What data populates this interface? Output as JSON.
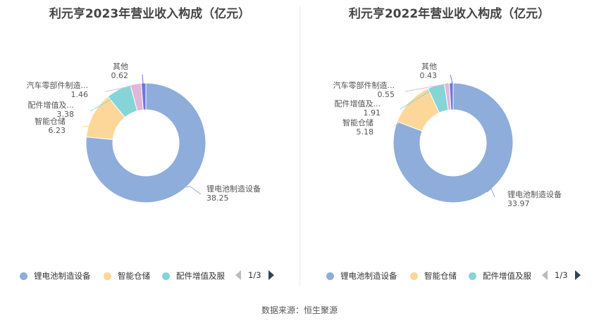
{
  "chart_data": [
    {
      "type": "pie",
      "title": "利元亨2023年营业收入构成（亿元）",
      "categories": [
        "锂电池制造设备",
        "智能仓储",
        "配件增值及服务",
        "汽车零部件制造设备",
        "其他"
      ],
      "labels": [
        "锂电池制造设备",
        "智能仓储",
        "配件增值及...",
        "汽车零部件制造...",
        "其他"
      ],
      "values": [
        38.25,
        6.23,
        3.38,
        1.46,
        0.62
      ],
      "value_labels": [
        "38.25",
        "6.23",
        "3.38",
        "1.46",
        "0.62"
      ],
      "colors": [
        "#8eadda",
        "#fcd799",
        "#85d4d8",
        "#e1b7d9",
        "#6e76e0"
      ],
      "legend": {
        "position": "bottom",
        "items": [
          "锂电池制造设备",
          "智能仓储",
          "配件增值及服"
        ],
        "page": "1/3"
      }
    },
    {
      "type": "pie",
      "title": "利元亨2022年营业收入构成（亿元）",
      "categories": [
        "锂电池制造设备",
        "智能仓储",
        "配件增值及服务",
        "汽车零部件制造设备",
        "其他"
      ],
      "labels": [
        "锂电池制造设备",
        "智能仓储",
        "配件增值及...",
        "汽车零部件制造...",
        "其他"
      ],
      "values": [
        33.97,
        5.18,
        1.91,
        0.55,
        0.43
      ],
      "value_labels": [
        "33.97",
        "5.18",
        "1.91",
        "0.55",
        "0.43"
      ],
      "colors": [
        "#8eadda",
        "#fcd799",
        "#85d4d8",
        "#e1b7d9",
        "#6e76e0"
      ],
      "legend": {
        "position": "bottom",
        "items": [
          "锂电池制造设备",
          "智能仓储",
          "配件增值及服"
        ],
        "page": "1/3"
      }
    }
  ],
  "footer": {
    "source": "数据来源：恒生聚源"
  }
}
